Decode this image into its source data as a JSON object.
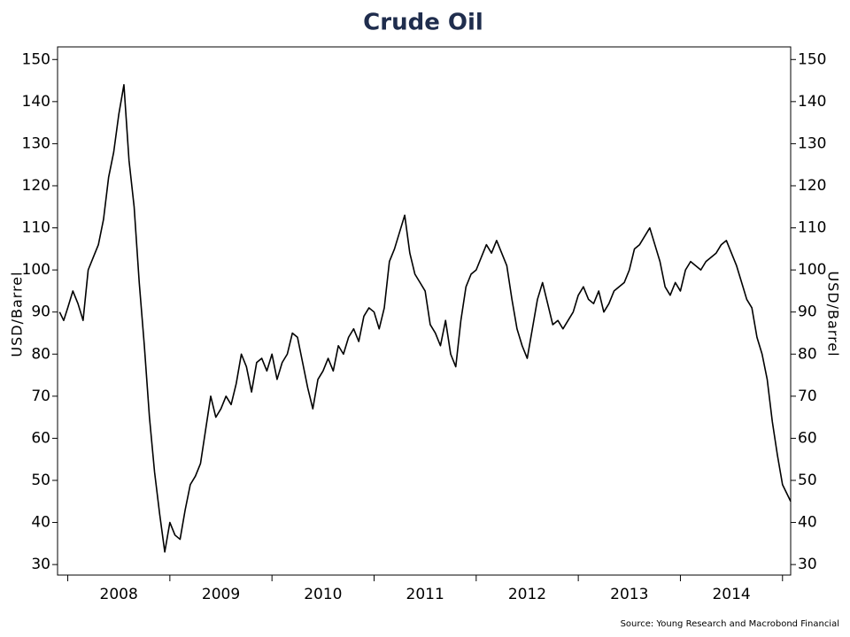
{
  "chart_data": {
    "type": "line",
    "title": "Crude Oil",
    "y_label": "USD/Barrel",
    "source": "Source: Young Research and Macrobond Financial",
    "x_labels": [
      "2008",
      "2009",
      "2010",
      "2011",
      "2012",
      "2013",
      "2014"
    ],
    "xticks": [
      2008,
      2009,
      2010,
      2011,
      2012,
      2013,
      2014,
      2015
    ],
    "xlim": [
      2007.9,
      2015.08
    ],
    "ylim": [
      27.5,
      153
    ],
    "yticks": [
      30,
      40,
      50,
      60,
      70,
      80,
      90,
      100,
      110,
      120,
      130,
      140,
      150
    ],
    "color": "#000000",
    "x": [
      2007.92,
      2007.96,
      2008,
      2008.05,
      2008.1,
      2008.15,
      2008.2,
      2008.25,
      2008.3,
      2008.35,
      2008.4,
      2008.45,
      2008.5,
      2008.55,
      2008.6,
      2008.65,
      2008.7,
      2008.75,
      2008.8,
      2008.85,
      2008.9,
      2008.95,
      2009,
      2009.05,
      2009.1,
      2009.15,
      2009.2,
      2009.25,
      2009.3,
      2009.35,
      2009.4,
      2009.45,
      2009.5,
      2009.55,
      2009.6,
      2009.65,
      2009.7,
      2009.75,
      2009.8,
      2009.85,
      2009.9,
      2009.95,
      2010,
      2010.05,
      2010.1,
      2010.15,
      2010.2,
      2010.25,
      2010.3,
      2010.35,
      2010.4,
      2010.45,
      2010.5,
      2010.55,
      2010.6,
      2010.65,
      2010.7,
      2010.75,
      2010.8,
      2010.85,
      2010.9,
      2010.95,
      2011,
      2011.05,
      2011.1,
      2011.15,
      2011.2,
      2011.25,
      2011.3,
      2011.35,
      2011.4,
      2011.45,
      2011.5,
      2011.55,
      2011.6,
      2011.65,
      2011.7,
      2011.75,
      2011.8,
      2011.85,
      2011.9,
      2011.95,
      2012,
      2012.05,
      2012.1,
      2012.15,
      2012.2,
      2012.25,
      2012.3,
      2012.35,
      2012.4,
      2012.45,
      2012.5,
      2012.55,
      2012.6,
      2012.65,
      2012.7,
      2012.75,
      2012.8,
      2012.85,
      2012.9,
      2012.95,
      2013,
      2013.05,
      2013.1,
      2013.15,
      2013.2,
      2013.25,
      2013.3,
      2013.35,
      2013.4,
      2013.45,
      2013.5,
      2013.55,
      2013.6,
      2013.65,
      2013.7,
      2013.75,
      2013.8,
      2013.85,
      2013.9,
      2013.95,
      2014,
      2014.05,
      2014.1,
      2014.15,
      2014.2,
      2014.25,
      2014.3,
      2014.35,
      2014.4,
      2014.45,
      2014.5,
      2014.55,
      2014.6,
      2014.65,
      2014.7,
      2014.75,
      2014.8,
      2014.85,
      2014.9,
      2014.95,
      2015,
      2015.04,
      2015.08
    ],
    "values": [
      90,
      88,
      91,
      95,
      92,
      88,
      100,
      103,
      106,
      112,
      122,
      128,
      137,
      144,
      126,
      115,
      97,
      82,
      65,
      52,
      42,
      33,
      40,
      37,
      36,
      43,
      49,
      51,
      54,
      62,
      70,
      65,
      67,
      70,
      68,
      73,
      80,
      77,
      71,
      78,
      79,
      76,
      80,
      74,
      78,
      80,
      85,
      84,
      78,
      72,
      67,
      74,
      76,
      79,
      76,
      82,
      80,
      84,
      86,
      83,
      89,
      91,
      90,
      86,
      91,
      102,
      105,
      109,
      113,
      104,
      99,
      97,
      95,
      87,
      85,
      82,
      88,
      80,
      77,
      88,
      96,
      99,
      100,
      103,
      106,
      104,
      107,
      104,
      101,
      93,
      86,
      82,
      79,
      86,
      93,
      97,
      92,
      87,
      88,
      86,
      88,
      90,
      94,
      96,
      93,
      92,
      95,
      90,
      92,
      95,
      96,
      97,
      100,
      105,
      106,
      108,
      110,
      106,
      102,
      96,
      94,
      97,
      95,
      100,
      102,
      101,
      100,
      102,
      103,
      104,
      106,
      107,
      104,
      101,
      97,
      93,
      91,
      84,
      80,
      74,
      64,
      56,
      49,
      47,
      45
    ]
  }
}
